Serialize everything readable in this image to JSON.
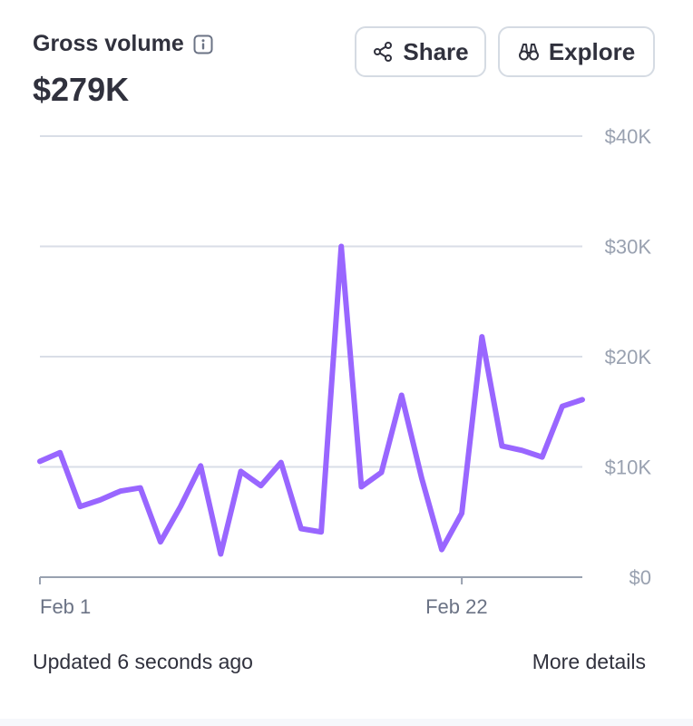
{
  "header": {
    "title": "Gross volume",
    "value": "$279K"
  },
  "buttons": {
    "share_label": "Share",
    "explore_label": "Explore"
  },
  "footer": {
    "updated": "Updated 6 seconds ago",
    "more_details": "More details"
  },
  "colors": {
    "line": "#9966ff",
    "grid": "#d9dee7",
    "axis": "#99a1b0"
  },
  "chart_data": {
    "type": "line",
    "x_labels": [
      "Feb 1",
      "Feb 22"
    ],
    "x_label_index": [
      0,
      21
    ],
    "y_ticks": [
      "$0",
      "$10K",
      "$20K",
      "$30K",
      "$40K"
    ],
    "ylim": [
      0,
      40000
    ],
    "grid": true,
    "series": [
      {
        "values": [
          10500,
          11300,
          6400,
          7000,
          7800,
          8100,
          3200,
          6400,
          10100,
          2100,
          9600,
          8300,
          10400,
          4400,
          4100,
          30000,
          8200,
          9500,
          16500,
          9000,
          2500,
          5800,
          21800,
          11900,
          11500,
          10900,
          15500,
          16100
        ]
      }
    ]
  }
}
